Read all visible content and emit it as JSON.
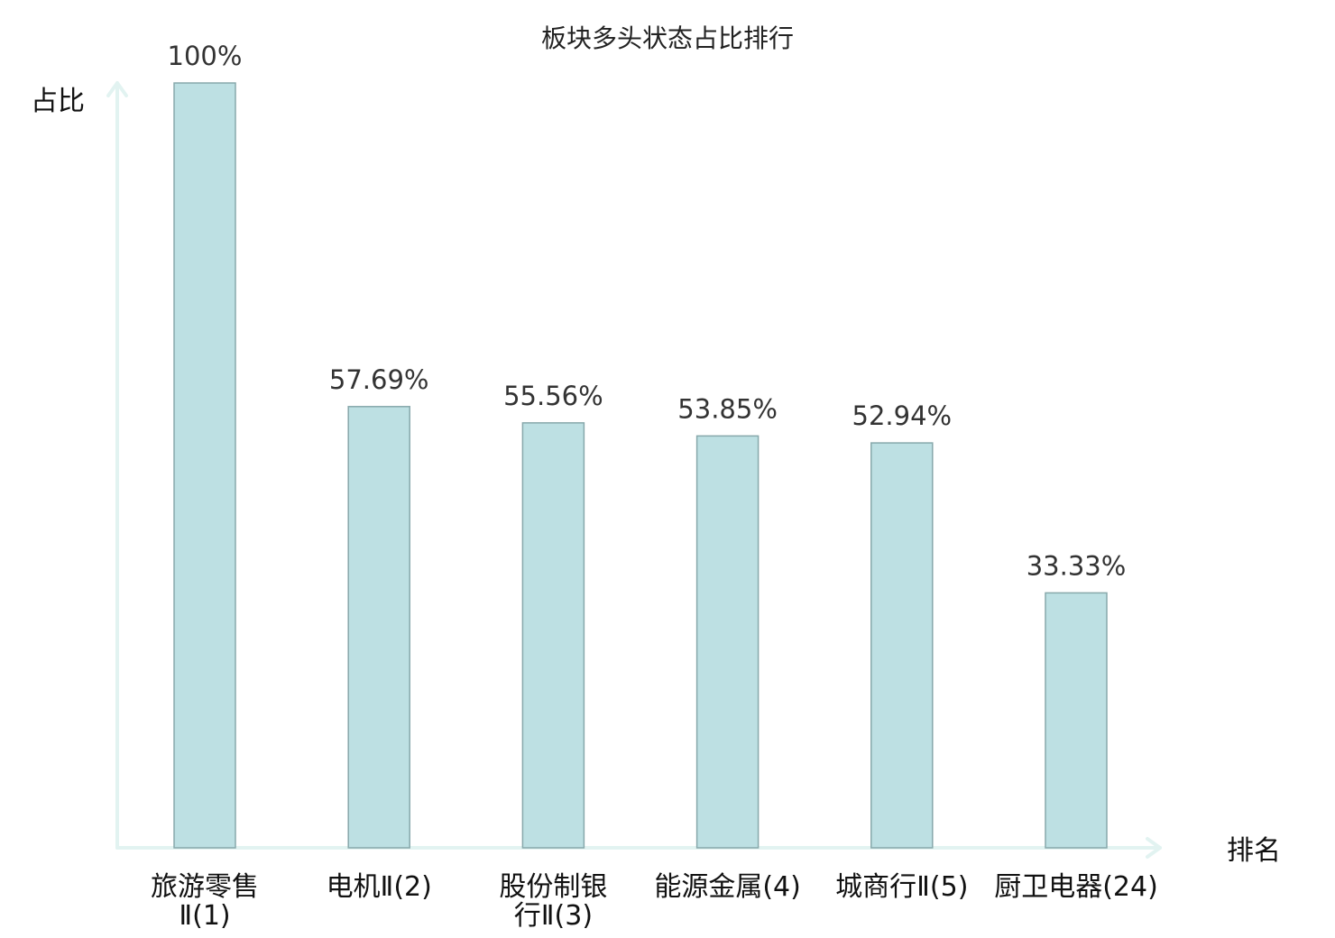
{
  "chart_data": {
    "type": "bar",
    "title": "板块多头状态占比排行",
    "ylabel": "占比",
    "xlabel": "排名",
    "ylim": [
      0,
      100
    ],
    "grid": false,
    "categories": [
      {
        "name": "旅游零售",
        "suffix": "Ⅱ(1)",
        "highlight": false,
        "lines": [
          "旅游零售",
          "Ⅱ(1)"
        ]
      },
      {
        "name": "电机",
        "suffix": "Ⅱ(2)",
        "highlight": false,
        "lines": [
          "电机Ⅱ(2)"
        ]
      },
      {
        "name": "股份制银行",
        "suffix": "Ⅱ(3)",
        "highlight": false,
        "lines": [
          "股份制银",
          "行Ⅱ(3)"
        ]
      },
      {
        "name": "能源金属",
        "suffix": "(4)",
        "highlight": false,
        "lines": [
          "能源金属(4)"
        ]
      },
      {
        "name": "城商行",
        "suffix": "Ⅱ(5)",
        "highlight": false,
        "lines": [
          "城商行Ⅱ(5)"
        ]
      },
      {
        "name": "厨卫电器",
        "suffix": "(24)",
        "highlight": true,
        "lines": [
          "厨卫电器(24)"
        ]
      }
    ],
    "values": [
      100,
      57.69,
      55.56,
      53.85,
      52.94,
      33.33
    ],
    "value_labels": [
      "100%",
      "57.69%",
      "55.56%",
      "53.85%",
      "52.94%",
      "33.33%"
    ]
  },
  "colors": {
    "bar_fill": "#bde0e3",
    "bar_stroke": "#87a8ab",
    "axis": "#e2f3f1",
    "highlight_text": "#e02020",
    "text": "#222222"
  }
}
